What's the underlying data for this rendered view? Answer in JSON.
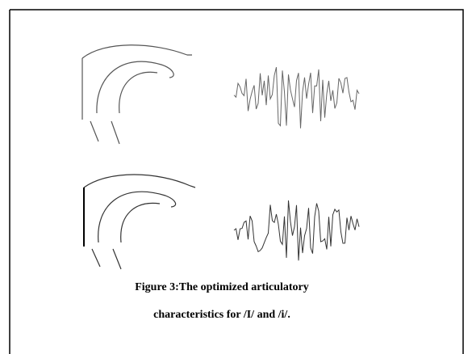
{
  "figure": {
    "caption": [
      "Figure 3:The optimized articulatory",
      "characteristics for /I/ and /i/."
    ]
  }
}
